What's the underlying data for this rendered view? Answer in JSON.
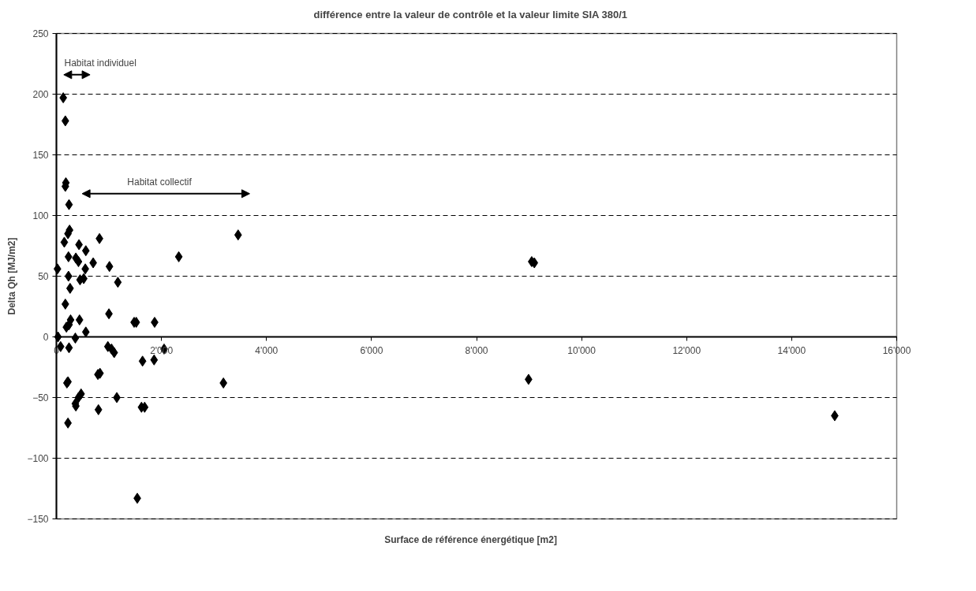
{
  "chart_data": {
    "type": "scatter",
    "title": "différence entre la valeur de contrôle et la valeur limite SIA 380/1",
    "xlabel": "Surface de référence énergétique [m2]",
    "ylabel": "Delta Qh [MJ/m2]",
    "x": [
      130,
      170,
      170,
      180,
      240,
      250,
      220,
      150,
      430,
      560,
      820,
      230,
      370,
      420,
      700,
      550,
      20,
      1010,
      1170,
      230,
      450,
      520,
      260,
      170,
      1000,
      270,
      440,
      190,
      240,
      560,
      360,
      30,
      80,
      240,
      980,
      1050,
      1100,
      1480,
      1520,
      1870,
      1640,
      1860,
      2050,
      2330,
      3460,
      9050,
      9100,
      8990,
      3180,
      14820,
      200,
      220,
      830,
      790,
      470,
      420,
      360,
      370,
      1150,
      800,
      1620,
      1680,
      220,
      1540
    ],
    "values": [
      197,
      178,
      124,
      127,
      109,
      88,
      85,
      78,
      76,
      71,
      81,
      66,
      65,
      62,
      61,
      56,
      56,
      58,
      45,
      50,
      47,
      48,
      40,
      27,
      19,
      14,
      14,
      8,
      10,
      4,
      -1,
      0,
      -8,
      -9,
      -8,
      -10,
      -13,
      12,
      12,
      12,
      -20,
      -19,
      -10,
      66,
      84,
      62,
      61,
      -35,
      -38,
      -65,
      -38,
      -37,
      -30,
      -31,
      -47,
      -50,
      -55,
      -57,
      -50,
      -60,
      -58,
      -58,
      -71,
      -133
    ],
    "color": "#000000",
    "marker": "diamond",
    "grid": "y",
    "xlim": [
      0,
      16000
    ],
    "ylim": [
      -150,
      250
    ],
    "xticks": [
      0,
      {
        "value": 2000,
        "label": "2'000"
      },
      {
        "value": 4000,
        "label": "4'000"
      },
      {
        "value": 6000,
        "label": "6'000"
      },
      {
        "value": 8000,
        "label": "8'000"
      },
      {
        "value": 10000,
        "label": "10'000"
      },
      {
        "value": 12000,
        "label": "12'000"
      },
      {
        "value": 14000,
        "label": "14'000"
      },
      {
        "value": 16000,
        "label": "16'000"
      }
    ],
    "yticks": [
      -150,
      -100,
      -50,
      0,
      50,
      100,
      150,
      200,
      250
    ],
    "annotations": [
      "Habitat individuel",
      "Habitat collectif"
    ]
  }
}
